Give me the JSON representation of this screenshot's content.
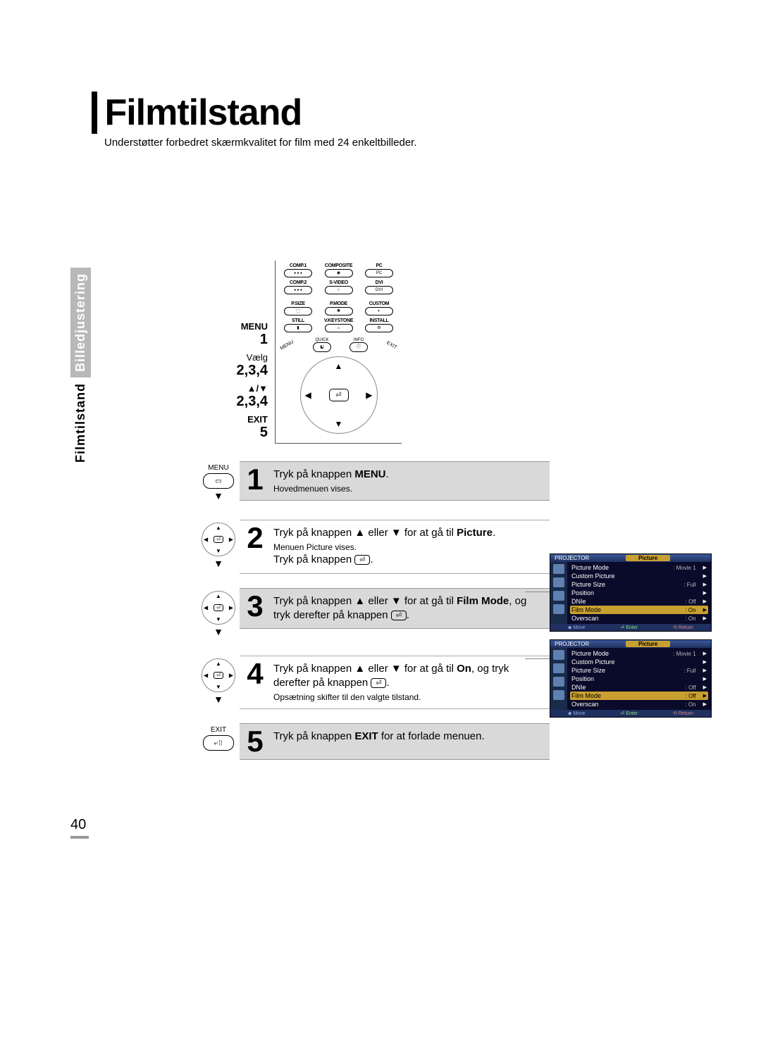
{
  "page": {
    "title": "Filmtilstand",
    "subtitle": "Understøtter forbedret skærmkvalitet for film med 24 enkeltbilleder.",
    "number": "40"
  },
  "sideTab": {
    "grey": "Billedjustering",
    "black": "Filmtilstand"
  },
  "remoteLabels": {
    "menu": "MENU",
    "menu_num": "1",
    "vaelg": "Vælg",
    "vaelg_num": "2,3,4",
    "updown": "▲/▼",
    "updown_num": "2,3,4",
    "exit": "EXIT",
    "exit_num": "5"
  },
  "remote": {
    "row1": [
      "COMP.1",
      "COMPOSITE",
      "PC"
    ],
    "row2": [
      "COMP.2",
      "S-VIDEO",
      "DVI"
    ],
    "row3": [
      "P.SIZE",
      "P.MODE",
      "CUSTOM"
    ],
    "row4": [
      "STILL",
      "V.KEYSTONE",
      "INSTALL"
    ],
    "nav_left": "QUICK",
    "nav_right": "INFO",
    "diag_left": "MENU",
    "diag_right": "EXIT"
  },
  "steps": [
    {
      "num": "1",
      "grey": true,
      "icon_type": "label",
      "icon_label": "MENU",
      "main_pre": "Tryk på knappen ",
      "main_bold": "MENU",
      "main_post": ".",
      "sub": "Hovedmenuen vises."
    },
    {
      "num": "2",
      "grey": false,
      "icon_type": "dpad",
      "line1_pre": "Tryk på knappen ▲ eller ▼ for at gå til ",
      "line1_bold": "Picture",
      "line1_post": ".",
      "sub": "Menuen Picture vises.",
      "line2_pre": "Tryk på knappen ",
      "line2_enter": true,
      "line2_post": "."
    },
    {
      "num": "3",
      "grey": true,
      "icon_type": "dpad",
      "line1_pre": "Tryk på knappen ▲ eller ▼ for at gå til ",
      "line1_bold": "Film Mode",
      "line1_mid": ", og tryk derefter på knappen ",
      "line1_enter": true,
      "line1_post": "."
    },
    {
      "num": "4",
      "grey": false,
      "icon_type": "dpad",
      "line1_pre": "Tryk på knappen ▲ eller ▼ for at gå til ",
      "line1_bold": "On",
      "line1_mid": ", og tryk derefter på knappen ",
      "line1_enter": true,
      "line1_post": ".",
      "sub": "Opsætning skifter til den valgte tilstand."
    },
    {
      "num": "5",
      "grey": true,
      "icon_type": "label",
      "icon_label": "EXIT",
      "main_pre": "Tryk på knappen ",
      "main_bold": "EXIT",
      "main_post": " for at forlade menuen."
    }
  ],
  "osd": {
    "head_left": "PROJECTOR",
    "head_tab": "Picture",
    "foot": [
      "◆ Move",
      "⏎ Enter",
      "⟲ Return"
    ],
    "menu1": [
      {
        "k": "Picture Mode",
        "v": "Movie 1",
        "hl": false
      },
      {
        "k": "Custom Picture",
        "v": "",
        "hl": false
      },
      {
        "k": "Picture Size",
        "v": "Full",
        "hl": false
      },
      {
        "k": "Position",
        "v": "",
        "hl": false
      },
      {
        "k": "DNIe",
        "v": "Off",
        "hl": false
      },
      {
        "k": "Film Mode",
        "v": "On",
        "hl": true
      },
      {
        "k": "Overscan",
        "v": "On",
        "hl": false
      }
    ],
    "menu2": [
      {
        "k": "Picture Mode",
        "v": "Movie 1",
        "hl": false
      },
      {
        "k": "Custom Picture",
        "v": "",
        "hl": false
      },
      {
        "k": "Picture Size",
        "v": "Full",
        "hl": false
      },
      {
        "k": "Position",
        "v": "",
        "hl": false
      },
      {
        "k": "DNIe",
        "v": "Off",
        "hl": false
      },
      {
        "k": "Film Mode",
        "v": "Off",
        "hl": true
      },
      {
        "k": "Overscan",
        "v": "On",
        "hl": false
      }
    ]
  }
}
